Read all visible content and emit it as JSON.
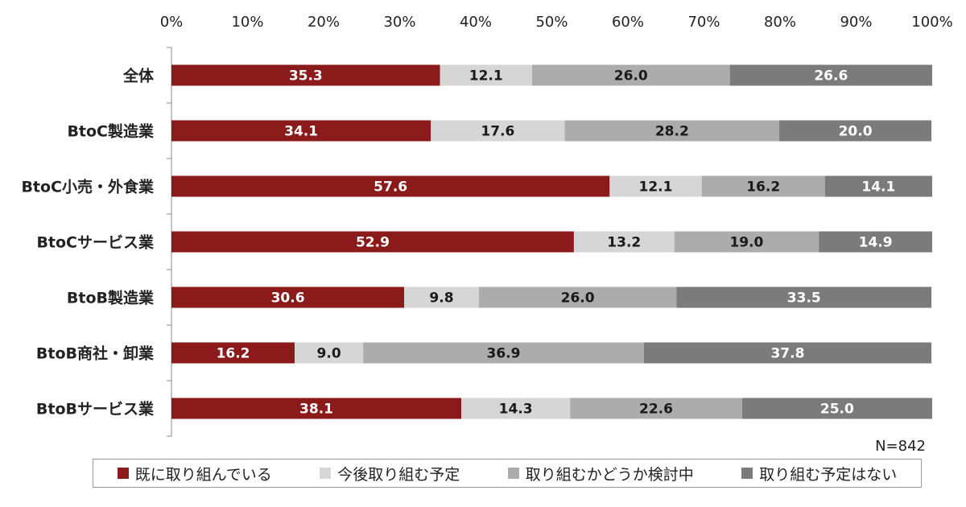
{
  "chart_data": {
    "type": "bar",
    "orientation": "horizontal",
    "stacked": true,
    "xlim": [
      0,
      100
    ],
    "x_ticks": [
      "0%",
      "10%",
      "20%",
      "30%",
      "40%",
      "50%",
      "60%",
      "70%",
      "80%",
      "90%",
      "100%"
    ],
    "categories": [
      "全体",
      "BtoC製造業",
      "BtoC小売・外食業",
      "BtoCサービス業",
      "BtoB製造業",
      "BtoB商社・卸業",
      "BtoBサービス業"
    ],
    "series": [
      {
        "name": "既に取り組んでいる",
        "color": "#8b1a1a",
        "label_color": "#ffffff",
        "values": [
          35.3,
          34.1,
          57.6,
          52.9,
          30.6,
          16.2,
          38.1
        ]
      },
      {
        "name": "今後取り組む予定",
        "color": "#d6d6d6",
        "label_color": "#1a1a1a",
        "values": [
          12.1,
          17.6,
          12.1,
          13.2,
          9.8,
          9.0,
          14.3
        ]
      },
      {
        "name": "取り組むかどうか検討中",
        "color": "#acacac",
        "label_color": "#1a1a1a",
        "values": [
          26.0,
          28.2,
          16.2,
          19.0,
          26.0,
          36.9,
          22.6
        ]
      },
      {
        "name": "取り組む予定はない",
        "color": "#7b7b7b",
        "label_color": "#ffffff",
        "values": [
          26.6,
          20.0,
          14.1,
          14.9,
          33.5,
          37.8,
          25.0
        ]
      }
    ],
    "value_format": "0.0",
    "legend_position": "bottom",
    "grid": false,
    "note": "N=842"
  }
}
